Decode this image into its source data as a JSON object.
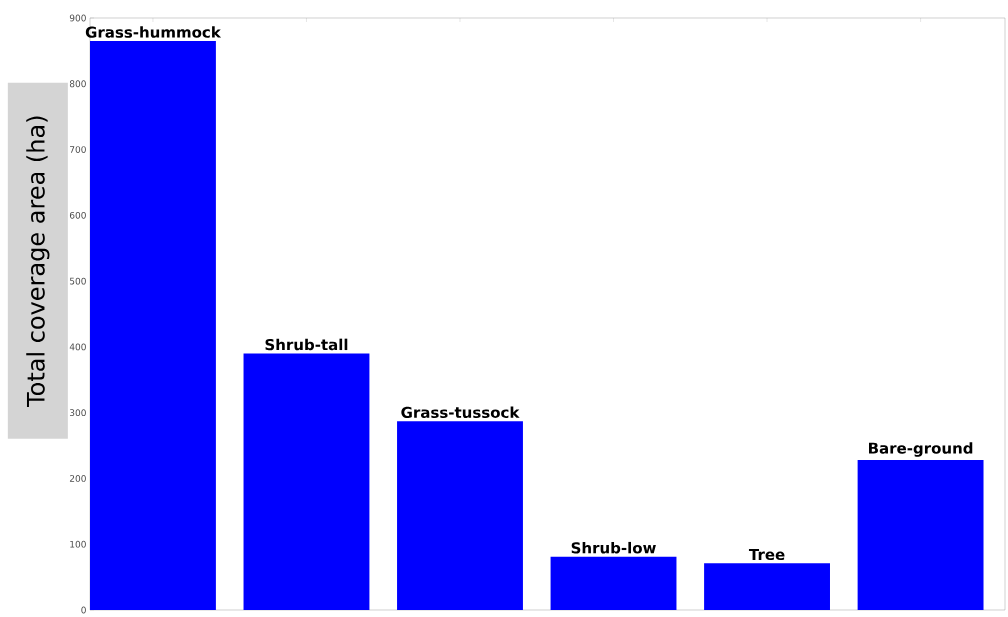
{
  "chart_data": {
    "type": "bar",
    "ylabel": "Total coverage area (ha)",
    "categories": [
      "Grass-hummock",
      "Shrub-tall",
      "Grass-tussock",
      "Shrub-low",
      "Tree",
      "Bare-ground"
    ],
    "values": [
      865,
      390,
      287,
      81,
      71,
      228
    ],
    "color": "#0000ff",
    "ylim": [
      0,
      900
    ],
    "yticks": [
      0,
      100,
      200,
      300,
      400,
      500,
      600,
      700,
      800,
      900
    ]
  }
}
